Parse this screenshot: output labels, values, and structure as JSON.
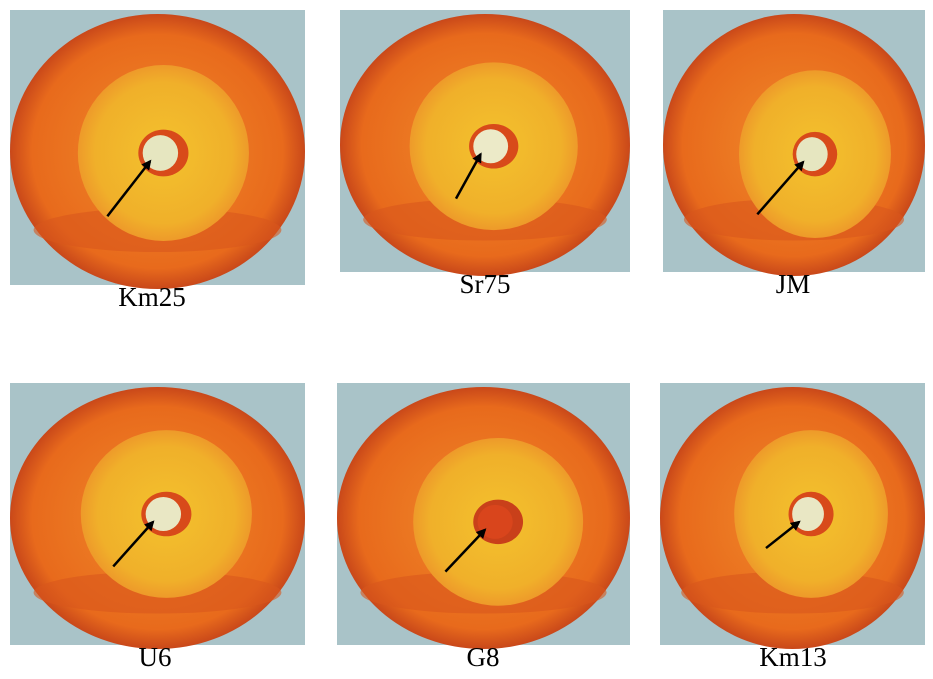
{
  "panels": [
    {
      "label": "Km25"
    },
    {
      "label": "Sr75"
    },
    {
      "label": "JM"
    },
    {
      "label": "U6"
    },
    {
      "label": "G8"
    },
    {
      "label": "Km13"
    }
  ]
}
